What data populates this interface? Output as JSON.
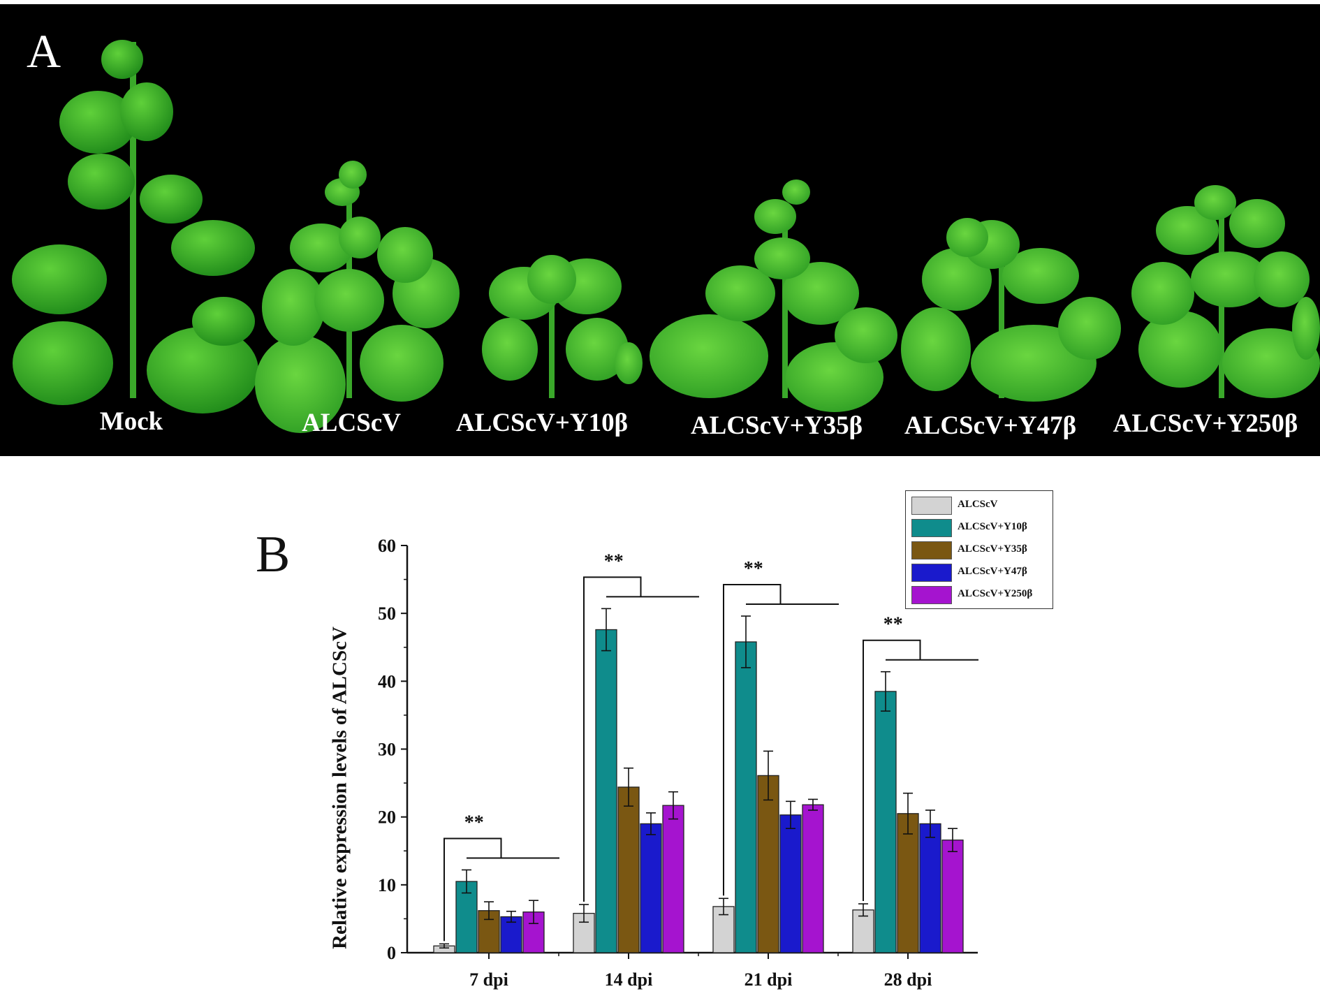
{
  "figure": {
    "panel_a_letter": "A",
    "panel_b_letter": "B",
    "plant_labels": [
      "Mock",
      "ALCScV",
      "ALCScV+Y10β",
      "ALCScV+Y35β",
      "ALCScV+Y47β",
      "ALCScV+Y250β"
    ]
  },
  "chart_data": {
    "type": "bar",
    "title": "",
    "xlabel": "",
    "ylabel": "Relative expression levels of ALCScV",
    "ylim": [
      0,
      60
    ],
    "yticks": [
      0,
      10,
      20,
      30,
      40,
      50,
      60
    ],
    "categories": [
      "7 dpi",
      "14 dpi",
      "21 dpi",
      "28 dpi"
    ],
    "series": [
      {
        "name": "ALCScV",
        "color": "#d3d3d3",
        "values": [
          1.0,
          5.8,
          6.8,
          6.3
        ],
        "errors": [
          0.3,
          1.3,
          1.2,
          0.9
        ]
      },
      {
        "name": "ALCScV+Y10β",
        "color": "#0f8c8c",
        "values": [
          10.5,
          47.6,
          45.8,
          38.5
        ],
        "errors": [
          1.7,
          3.1,
          3.8,
          2.9
        ]
      },
      {
        "name": "ALCScV+Y35β",
        "color": "#7a5712",
        "values": [
          6.2,
          24.4,
          26.1,
          20.5
        ],
        "errors": [
          1.3,
          2.8,
          3.6,
          3.0
        ]
      },
      {
        "name": "ALCScV+Y47β",
        "color": "#1a1acc",
        "values": [
          5.3,
          19.0,
          20.3,
          19.0
        ],
        "errors": [
          0.8,
          1.6,
          2.0,
          2.0
        ]
      },
      {
        "name": "ALCScV+Y250β",
        "color": "#a514cf",
        "values": [
          6.0,
          21.7,
          21.8,
          16.6
        ],
        "errors": [
          1.7,
          2.0,
          0.8,
          1.7
        ]
      }
    ],
    "significance": [
      "**",
      "**",
      "**",
      "**"
    ],
    "legend_position": "top-right"
  }
}
